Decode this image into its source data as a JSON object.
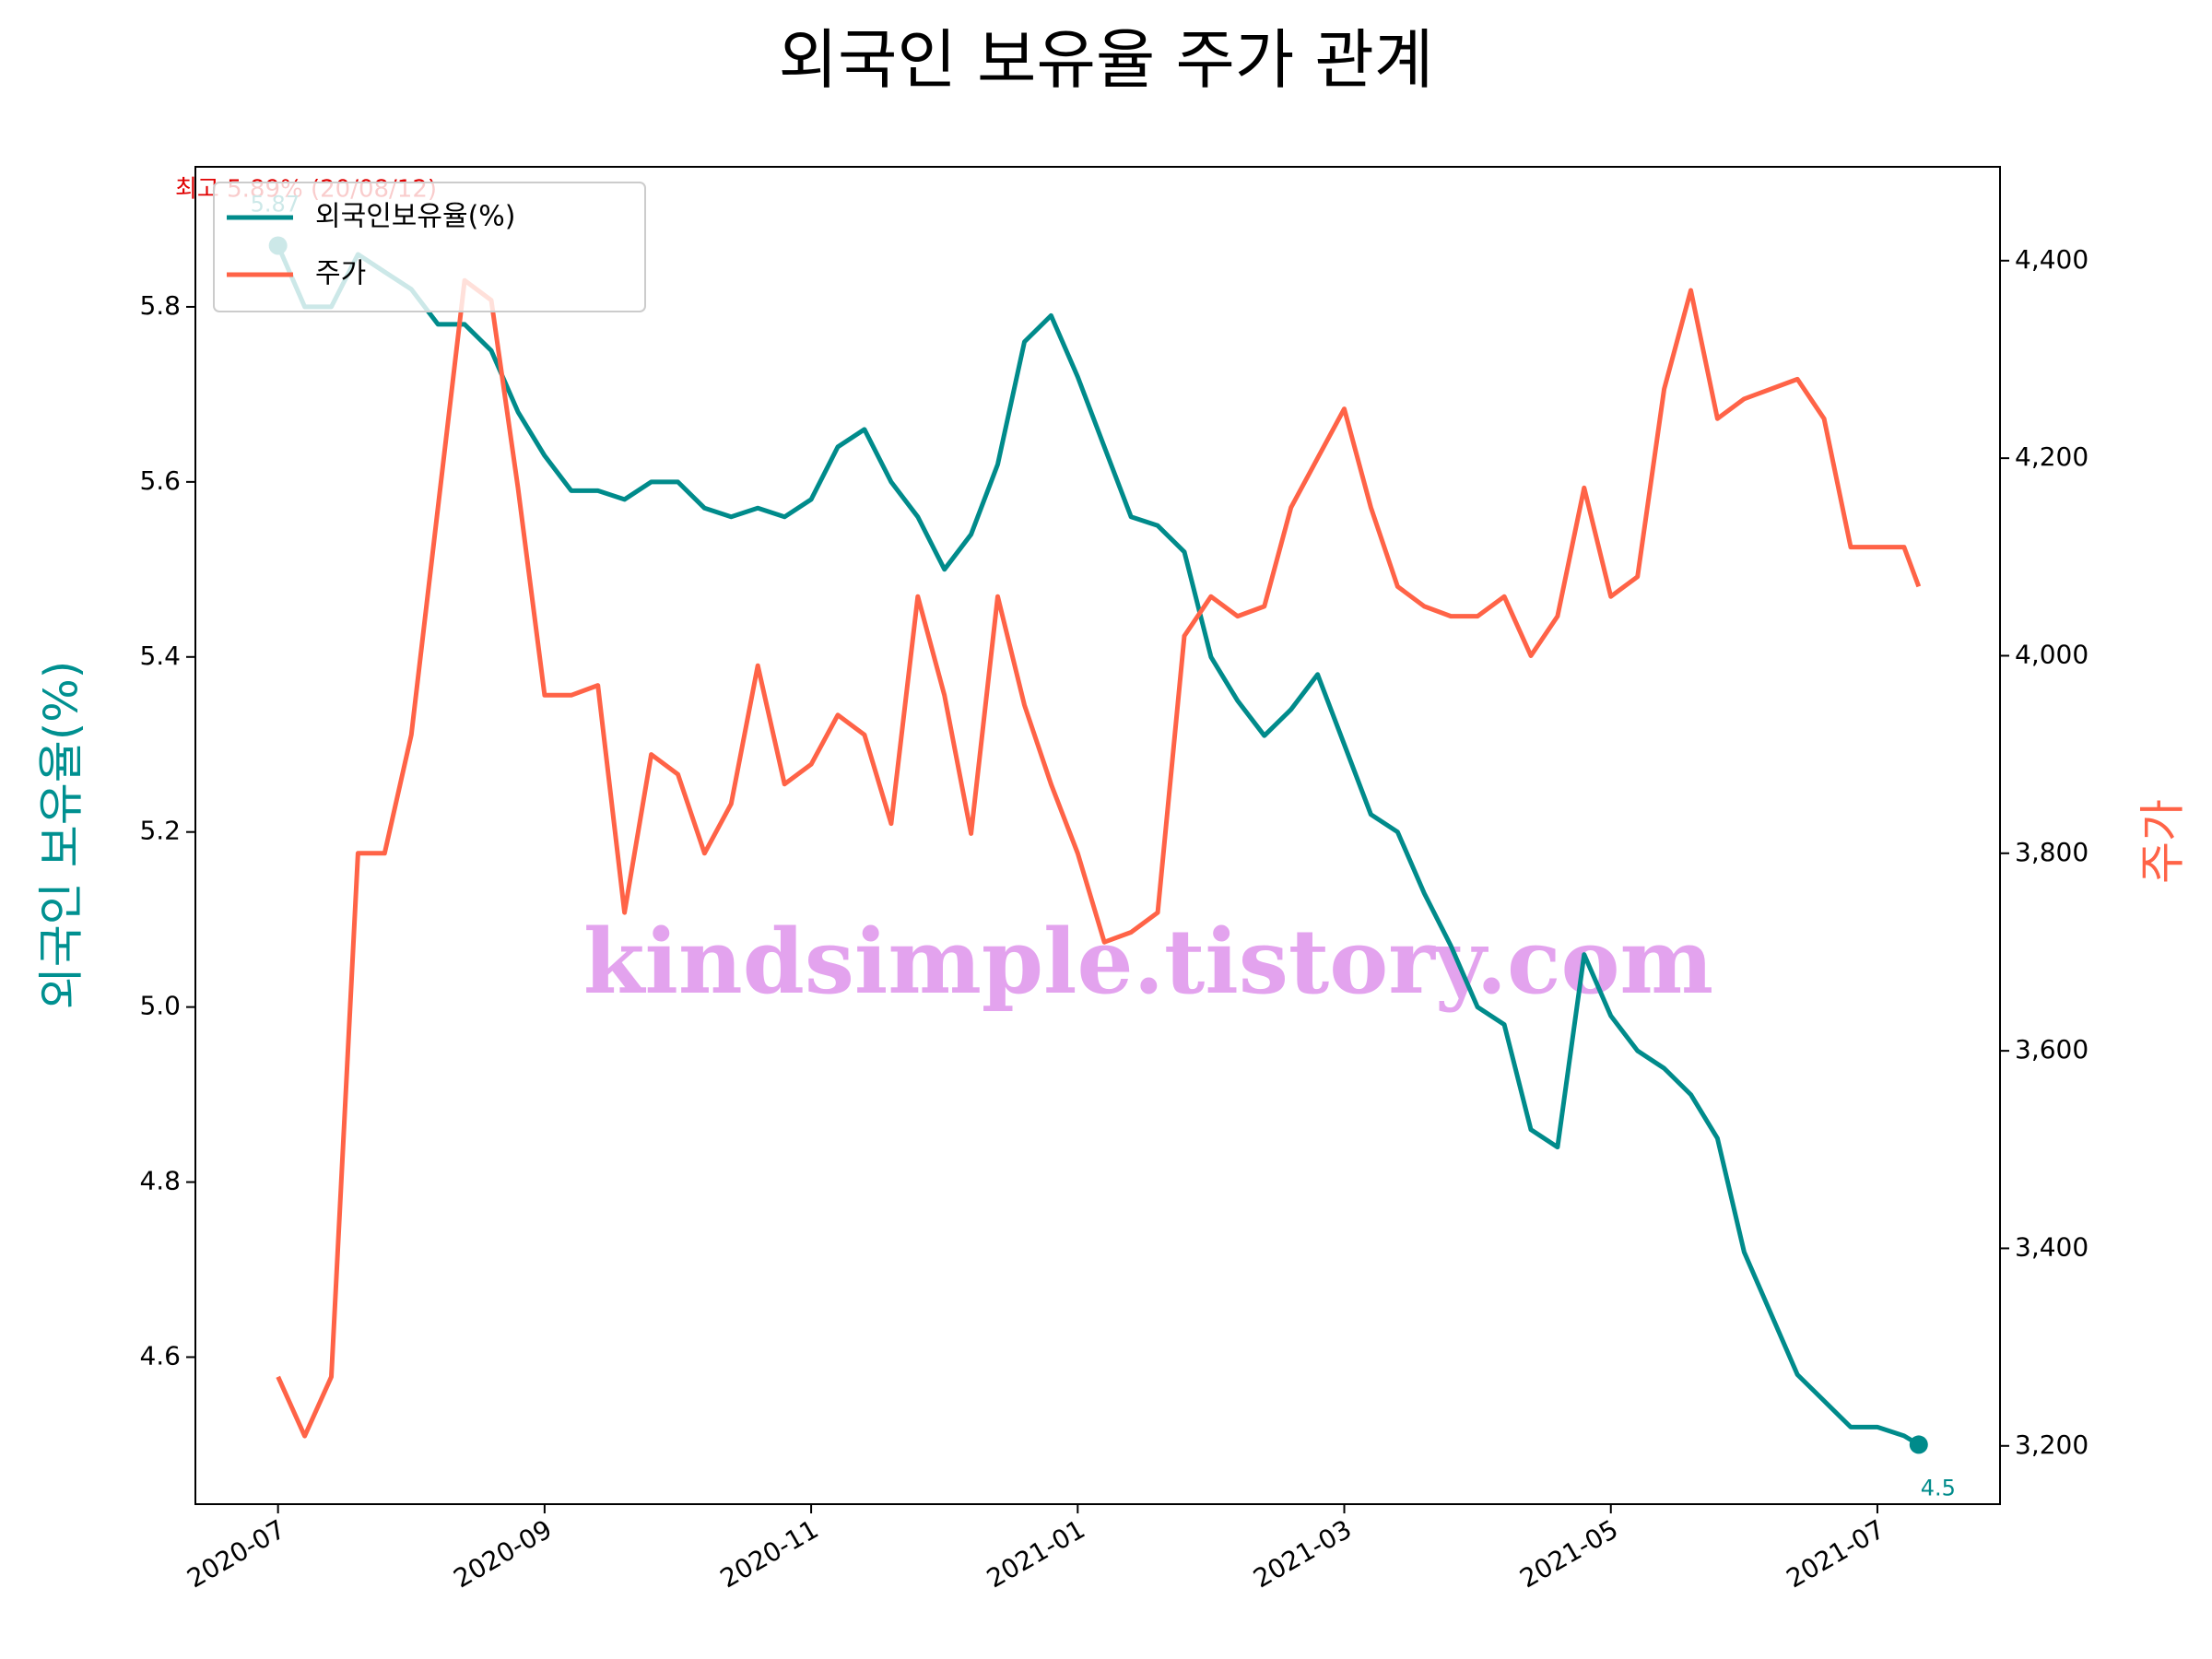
{
  "chart_data": {
    "type": "line",
    "title": "외국인 보유율 주가 관계",
    "y_label": "외국인 보유율(%)",
    "y2_label": "주가",
    "annotations": {
      "peak": "최고 5.89% (20/08/12)",
      "start": "5.87",
      "end": "4.5"
    },
    "watermark": "kindsimple.tistory.com",
    "legend": "upper left",
    "grid": false,
    "x": [
      0,
      0.2,
      0.4,
      0.6,
      0.8,
      1.0,
      1.2,
      1.4,
      1.6,
      1.8,
      2.0,
      2.2,
      2.4,
      2.6,
      2.8,
      3.0,
      3.2,
      3.4,
      3.6,
      3.8,
      4.0,
      4.2,
      4.4,
      4.6,
      4.8,
      5.0,
      5.2,
      5.4,
      5.6,
      5.8,
      6.0,
      6.2,
      6.4,
      6.6,
      6.8,
      7.0,
      7.2,
      7.4,
      7.6,
      7.8,
      8.0,
      8.2,
      8.4,
      8.6,
      8.8,
      9.0,
      9.2,
      9.4,
      9.6,
      9.8,
      10.0,
      10.2,
      10.4,
      10.6,
      10.8,
      11.0,
      11.2,
      11.4,
      11.6,
      11.8,
      12.0,
      12.2,
      12.31
    ],
    "xlim": [
      -0.62,
      12.92
    ],
    "xticks": [
      {
        "value": 0,
        "label": "2020-07"
      },
      {
        "value": 2,
        "label": "2020-09"
      },
      {
        "value": 4,
        "label": "2020-11"
      },
      {
        "value": 6,
        "label": "2021-01"
      },
      {
        "value": 8,
        "label": "2021-03"
      },
      {
        "value": 10,
        "label": "2021-05"
      },
      {
        "value": 12,
        "label": "2021-07"
      }
    ],
    "ylim": [
      4.432,
      5.96
    ],
    "yticks": [
      4.6,
      4.8,
      {
        "value": 5,
        "label": "5.0"
      },
      5.2,
      5.4,
      5.6,
      5.8
    ],
    "y2lim": [
      3141,
      4495
    ],
    "y2ticks": [
      {
        "value": 3200,
        "label": "3,200"
      },
      {
        "value": 3400,
        "label": "3,400"
      },
      {
        "value": 3600,
        "label": "3,600"
      },
      {
        "value": 3800,
        "label": "3,800"
      },
      {
        "value": 4000,
        "label": "4,000"
      },
      {
        "value": 4200,
        "label": "4,200"
      },
      {
        "value": 4400,
        "label": "4,400"
      }
    ],
    "series": [
      {
        "name": "외국인보유율(%)",
        "color": "#008b8b",
        "values": [
          5.87,
          5.8,
          5.8,
          5.86,
          5.84,
          5.82,
          5.78,
          5.78,
          5.75,
          5.68,
          5.63,
          5.59,
          5.59,
          5.58,
          5.6,
          5.6,
          5.57,
          5.56,
          5.57,
          5.56,
          5.58,
          5.64,
          5.66,
          5.6,
          5.56,
          5.5,
          5.54,
          5.62,
          5.76,
          5.79,
          5.72,
          5.64,
          5.56,
          5.55,
          5.52,
          5.4,
          5.35,
          5.31,
          5.34,
          5.38,
          5.3,
          5.22,
          5.2,
          5.13,
          5.07,
          5.0,
          4.98,
          4.86,
          4.84,
          5.06,
          4.99,
          4.95,
          4.93,
          4.9,
          4.85,
          4.72,
          4.65,
          4.58,
          4.55,
          4.52,
          4.52,
          4.51,
          4.5
        ]
      },
      {
        "name": "주가",
        "color": "#ff6347",
        "axis": "y2",
        "values": [
          3270,
          3210,
          3270,
          3800,
          3800,
          3920,
          4150,
          4380,
          4360,
          4170,
          3960,
          3960,
          3970,
          3740,
          3900,
          3880,
          3800,
          3850,
          3990,
          3870,
          3890,
          3940,
          3920,
          3830,
          4060,
          3960,
          3820,
          4060,
          3950,
          3870,
          3800,
          3710,
          3720,
          3740,
          4020,
          4060,
          4040,
          4050,
          4150,
          4200,
          4250,
          4150,
          4070,
          4050,
          4040,
          4040,
          4060,
          4000,
          4040,
          4170,
          4060,
          4080,
          4270,
          4370,
          4240,
          4260,
          4270,
          4280,
          4240,
          4110,
          4110,
          4110,
          4070
        ]
      }
    ]
  }
}
